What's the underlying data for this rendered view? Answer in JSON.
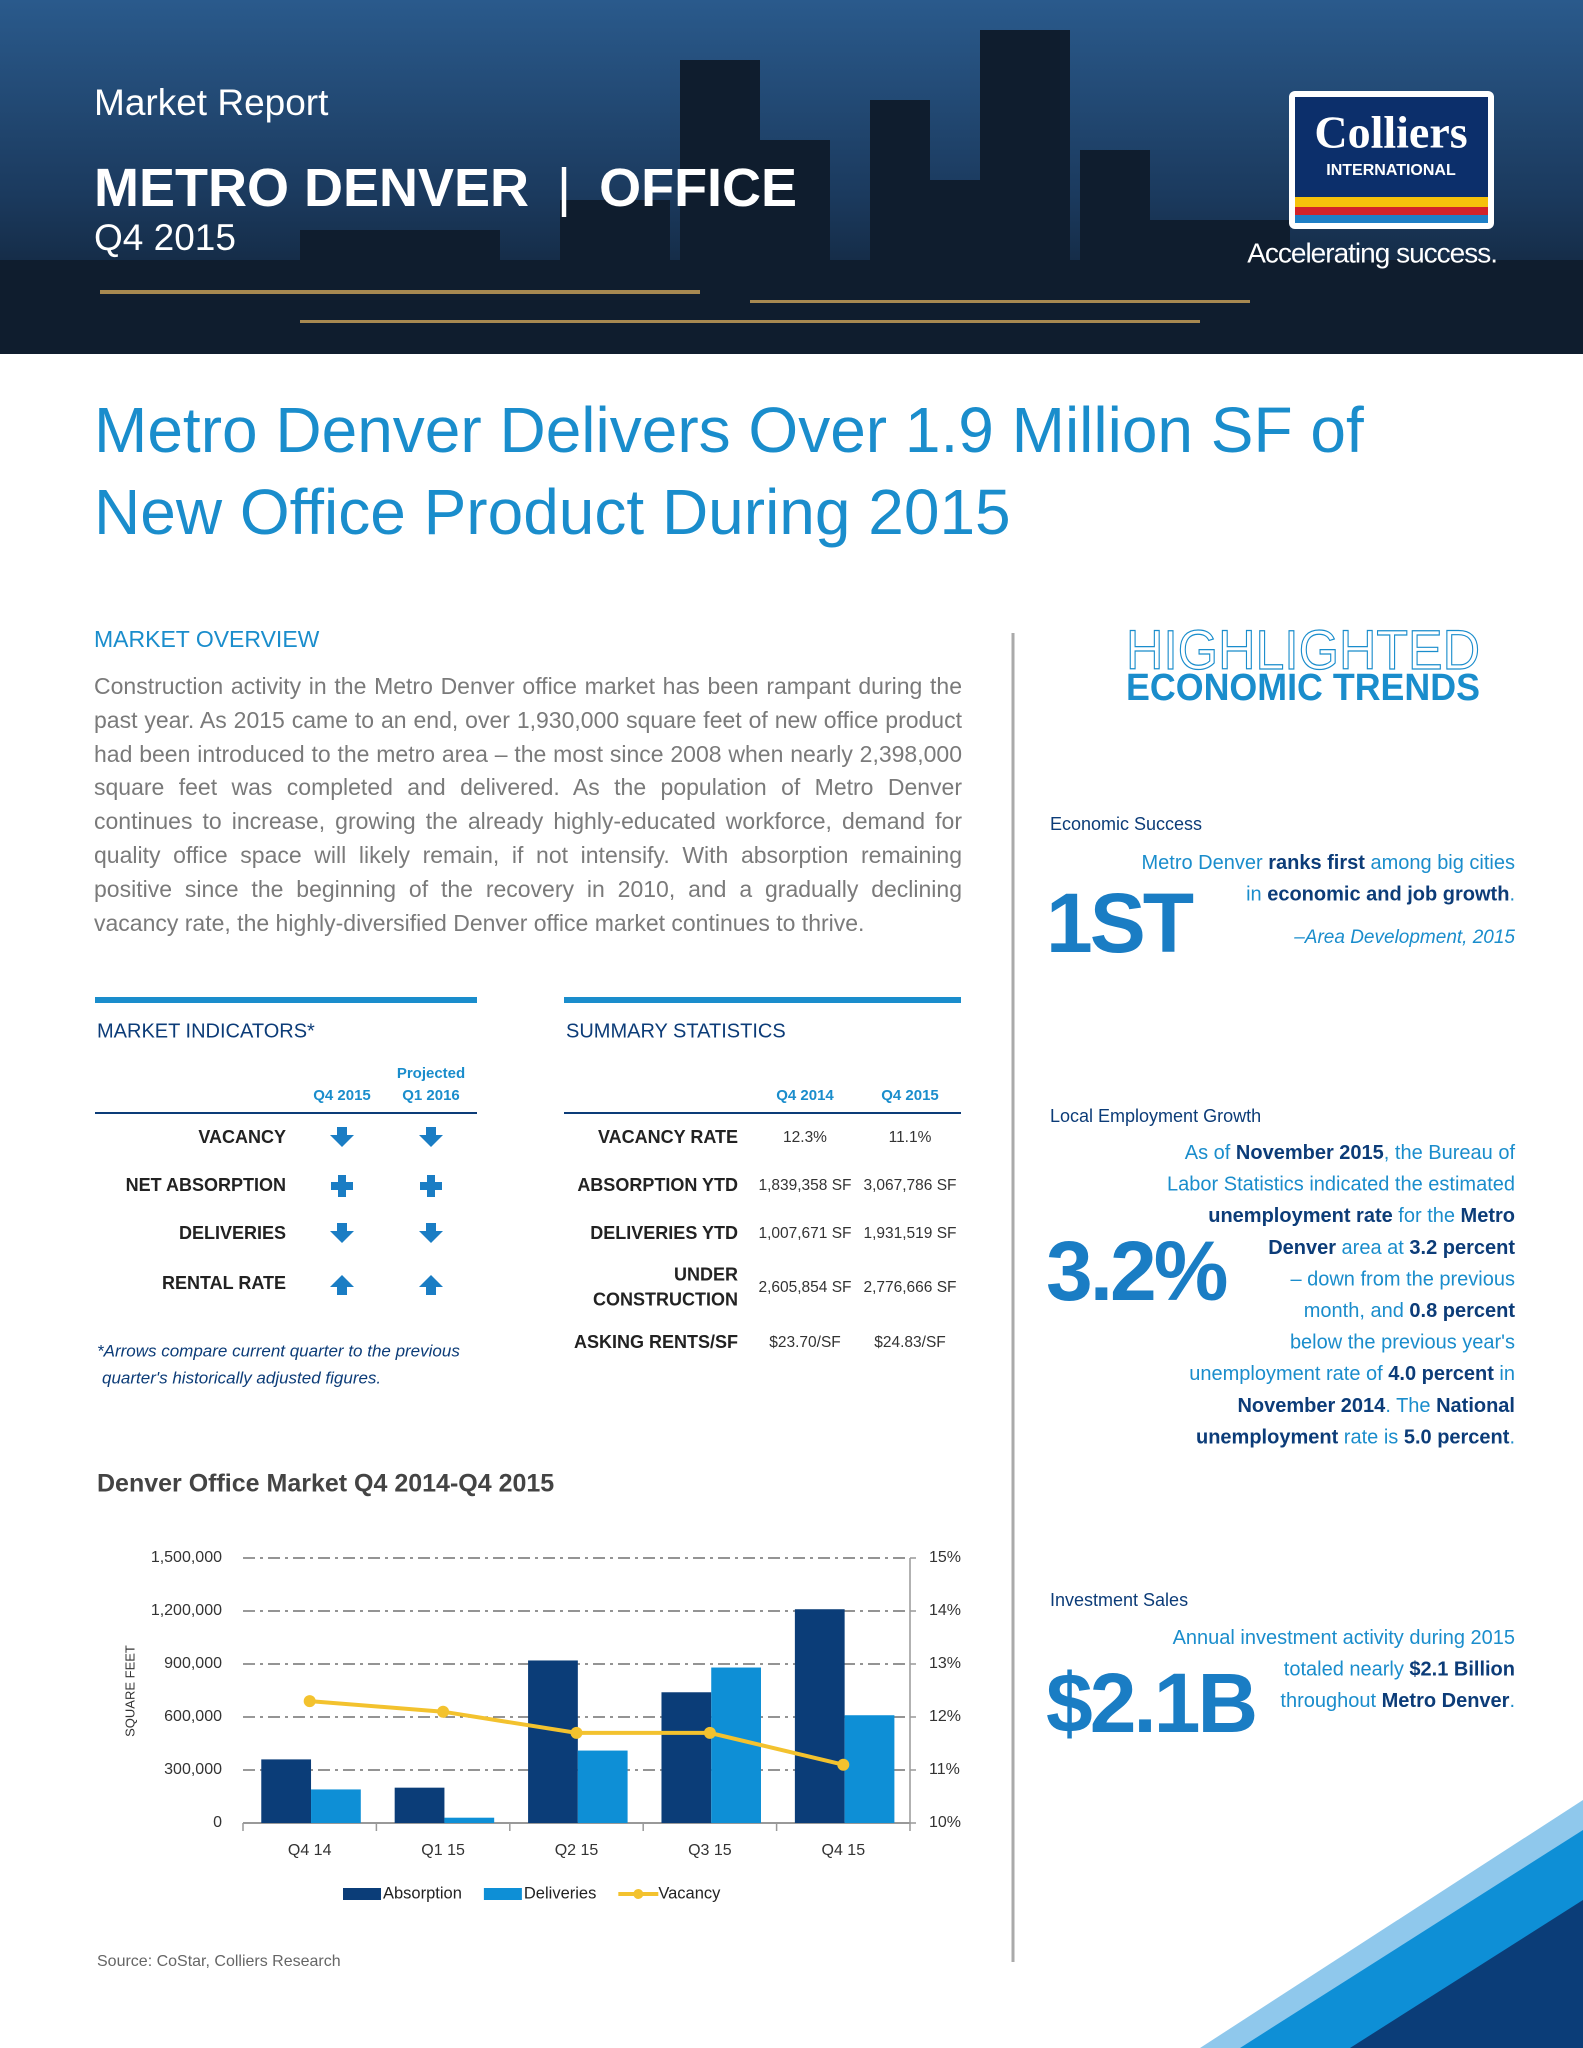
{
  "header": {
    "kicker": "Market Report",
    "title_left": "METRO DENVER",
    "separator": "|",
    "title_right": "OFFICE",
    "period": "Q4 2015",
    "logo_name": "Colliers",
    "logo_sub": "INTERNATIONAL",
    "tagline": "Accelerating success."
  },
  "headline": [
    "Metro Denver Delivers Over 1.9 Million SF of",
    "New Office Product During 2015"
  ],
  "overview": {
    "heading": "MARKET OVERVIEW",
    "body": "Construction activity in the Metro Denver office market has been rampant during the past year.  As 2015 came to an end, over 1,930,000 square feet of new office product had been introduced to the metro area – the most since 2008 when nearly 2,398,000 square feet was completed and delivered.  As the population of Metro Denver continues to increase, growing the already highly-educated workforce, demand for quality office space will likely remain, if not intensify.  With absorption remaining positive since the beginning of the recovery in 2010, and a gradually declining vacancy rate, the highly-diversified Denver office market continues to thrive."
  },
  "indicators": {
    "heading": "MARKET INDICATORS*",
    "col1": [
      "Q4 2015"
    ],
    "col2": [
      "Projected",
      "Q1 2016"
    ],
    "rows": [
      {
        "label": "VACANCY",
        "current": "down",
        "projected": "down"
      },
      {
        "label": "NET ABSORPTION",
        "current": "plus",
        "projected": "plus"
      },
      {
        "label": "DELIVERIES",
        "current": "down",
        "projected": "down"
      },
      {
        "label": "RENTAL RATE",
        "current": "up",
        "projected": "up"
      }
    ],
    "footnote": [
      "*Arrows compare current quarter to the previous",
      "quarter's historically adjusted figures."
    ]
  },
  "summary": {
    "heading": "SUMMARY STATISTICS",
    "columns": [
      "Q4 2014",
      "Q4 2015"
    ],
    "rows": [
      {
        "label": [
          "VACANCY RATE"
        ],
        "values": [
          "12.3%",
          "11.1%"
        ]
      },
      {
        "label": [
          "ABSORPTION YTD"
        ],
        "values": [
          "1,839,358 SF",
          "3,067,786 SF"
        ]
      },
      {
        "label": [
          "DELIVERIES YTD"
        ],
        "values": [
          "1,007,671 SF",
          "1,931,519 SF"
        ]
      },
      {
        "label": [
          "UNDER",
          "CONSTRUCTION"
        ],
        "values": [
          "2,605,854 SF",
          "2,776,666 SF"
        ]
      },
      {
        "label": [
          "ASKING RENTS/SF"
        ],
        "values": [
          "$23.70/SF",
          "$24.83/SF"
        ]
      }
    ]
  },
  "trends": {
    "heading_top": "HIGHLIGHTED",
    "heading_bottom": "ECONOMIC TRENDS",
    "items": [
      {
        "title": "Economic Success",
        "stat": "1ST",
        "lines": [
          [
            {
              "text": "Metro Denver "
            },
            {
              "text": "ranks first",
              "bold": true
            },
            {
              "text": " among big cities"
            }
          ],
          [
            {
              "text": "in "
            },
            {
              "text": "economic and job growth",
              "bold": true
            },
            {
              "text": "."
            }
          ]
        ],
        "cite": "–Area Development, 2015"
      },
      {
        "title": "Local Employment Growth",
        "stat": "3.2%",
        "lines": [
          [
            {
              "text": "As of "
            },
            {
              "text": "November 2015",
              "bold": true
            },
            {
              "text": ", the Bureau of"
            }
          ],
          [
            {
              "text": "Labor Statistics indicated the estimated"
            }
          ],
          [
            {
              "text": "unemployment rate",
              "bold": true
            },
            {
              "text": " for the "
            },
            {
              "text": "Metro",
              "bold": true
            }
          ],
          [
            {
              "text": "Denver",
              "bold": true
            },
            {
              "text": " area at "
            },
            {
              "text": "3.2 percent",
              "bold": true
            }
          ],
          [
            {
              "text": "– down from the previous"
            }
          ],
          [
            {
              "text": "month, and "
            },
            {
              "text": "0.8 percent",
              "bold": true
            }
          ],
          [
            {
              "text": "below the previous year's"
            }
          ],
          [
            {
              "text": "unemployment rate of "
            },
            {
              "text": "4.0 percent",
              "bold": true
            },
            {
              "text": " in"
            }
          ],
          [
            {
              "text": "November 2014",
              "bold": true
            },
            {
              "text": ". The "
            },
            {
              "text": "National",
              "bold": true
            }
          ],
          [
            {
              "text": "unemployment",
              "bold": true
            },
            {
              "text": " rate is "
            },
            {
              "text": "5.0 percent",
              "bold": true
            },
            {
              "text": "."
            }
          ]
        ]
      },
      {
        "title": "Investment Sales",
        "stat": "$2.1B",
        "lines": [
          [
            {
              "text": "Annual investment activity during 2015"
            }
          ],
          [
            {
              "text": "totaled nearly "
            },
            {
              "text": "$2.1 Billion",
              "bold": true
            }
          ],
          [
            {
              "text": "throughout "
            },
            {
              "text": "Metro Denver",
              "bold": true
            },
            {
              "text": "."
            }
          ]
        ]
      }
    ]
  },
  "chart_data": {
    "type": "bar",
    "title": "Denver Office Market Q4 2014-Q4 2015",
    "ylabel": "SQUARE FEET",
    "categories": [
      "Q4 14",
      "Q1 15",
      "Q2 15",
      "Q3 15",
      "Q4 15"
    ],
    "series": [
      {
        "name": "Absorption",
        "color": "#0b3d78",
        "values": [
          360000,
          200000,
          920000,
          740000,
          1210000
        ]
      },
      {
        "name": "Deliveries",
        "color": "#0e8fd6",
        "values": [
          190000,
          30000,
          410000,
          880000,
          610000
        ]
      },
      {
        "name": "Vacancy",
        "color": "#f3c22e",
        "axis": "y2",
        "values": [
          12.3,
          12.1,
          11.7,
          11.7,
          11.1
        ]
      }
    ],
    "ylim": [
      0,
      1500000
    ],
    "yticks": [
      0,
      {
        "value": 300000,
        "label": "300,000"
      },
      {
        "value": 600000,
        "label": "600,000"
      },
      {
        "value": 900000,
        "label": "900,000"
      },
      {
        "value": 1200000,
        "label": "1,200,000"
      },
      {
        "value": 1500000,
        "label": "1,500,000"
      }
    ],
    "y2lim": [
      10,
      15
    ],
    "y2ticks": [
      {
        "value": 10,
        "label": "10%"
      },
      {
        "value": 11,
        "label": "11%"
      },
      {
        "value": 12,
        "label": "12%"
      },
      {
        "value": 13,
        "label": "13%"
      },
      {
        "value": 14,
        "label": "14%"
      },
      {
        "value": 15,
        "label": "15%"
      }
    ],
    "grid": true,
    "legend": "bottom"
  },
  "source": "Source: CoStar, Colliers Research"
}
